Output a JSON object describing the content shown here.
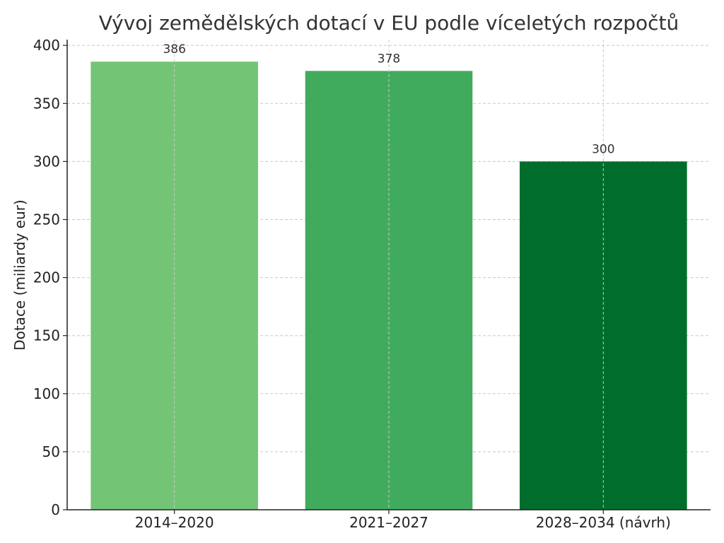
{
  "chart_data": {
    "type": "bar",
    "title": "Vývoj zemědělských dotací v EU podle víceletých rozpočtů",
    "xlabel": "",
    "ylabel": "Dotace (miliardy eur)",
    "categories": [
      "2014–2020",
      "2021–2027",
      "2028–2034 (návrh)"
    ],
    "values": [
      386,
      378,
      300
    ],
    "data_labels": [
      "386",
      "378",
      "300"
    ],
    "colors": [
      "#74c476",
      "#41ab5d",
      "#006d2c"
    ],
    "ylim": [
      0,
      405
    ],
    "yticks": [
      0,
      50,
      100,
      150,
      200,
      250,
      300,
      350,
      400
    ],
    "grid": true
  }
}
